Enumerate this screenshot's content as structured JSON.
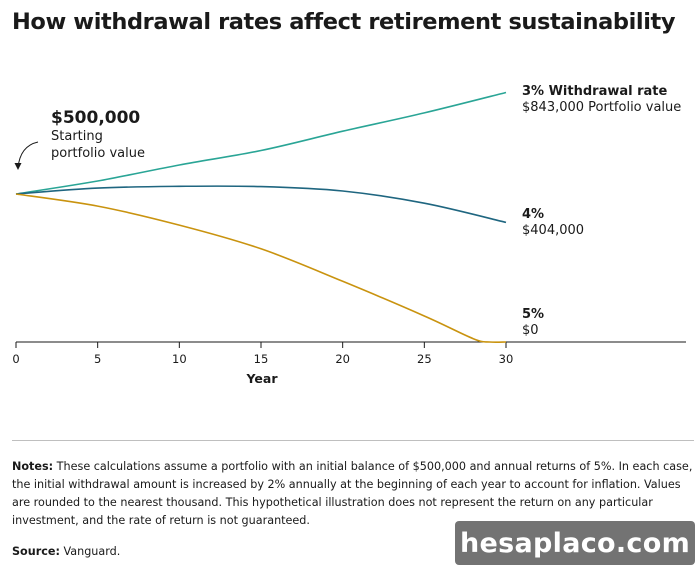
{
  "chart_data": {
    "type": "line",
    "title": "How withdrawal rates affect retirement sustainability",
    "xlabel": "Year",
    "ylabel": "",
    "xlim": [
      0,
      30
    ],
    "xticks": [
      "0",
      "5",
      "10",
      "15",
      "20",
      "25",
      "30"
    ],
    "grid": false,
    "legend": "direct labels at line ends",
    "start_annotation": {
      "value": "$500,000",
      "text": [
        "Starting",
        "portfolio value"
      ]
    },
    "series": [
      {
        "name": "3% Withdrawal rate",
        "end_label": "$843,000 Portfolio value",
        "color": "#2aa596",
        "x": [
          0,
          5,
          10,
          15,
          20,
          25,
          30
        ],
        "y": [
          500000,
          544000,
          598000,
          647000,
          712000,
          774000,
          843000
        ]
      },
      {
        "name": "4%",
        "end_label": "$404,000",
        "color": "#1f6680",
        "x": [
          0,
          5,
          10,
          15,
          20,
          25,
          30
        ],
        "y": [
          500000,
          520000,
          526000,
          525000,
          510000,
          469000,
          404000
        ]
      },
      {
        "name": "5%",
        "end_label": "$0",
        "color": "#c9930f",
        "x": [
          0,
          5,
          10,
          15,
          20,
          25,
          28,
          29,
          30
        ],
        "y": [
          500000,
          459000,
          395000,
          315000,
          205000,
          88000,
          11000,
          0,
          0
        ]
      }
    ]
  },
  "notes": {
    "label": "Notes:",
    "text": " These calculations assume a portfolio with an initial balance of $500,000 and annual returns of 5%. In each case, the initial withdrawal amount is increased by 2% annually at the beginning of each year to account for inflation. Values are rounded to the nearest thousand. This hypothetical illustration does not represent the return on any particular investment, and the rate of return is not guaranteed."
  },
  "source": {
    "label": "Source:",
    "text": " Vanguard."
  },
  "watermark": "hesaplaco.com"
}
